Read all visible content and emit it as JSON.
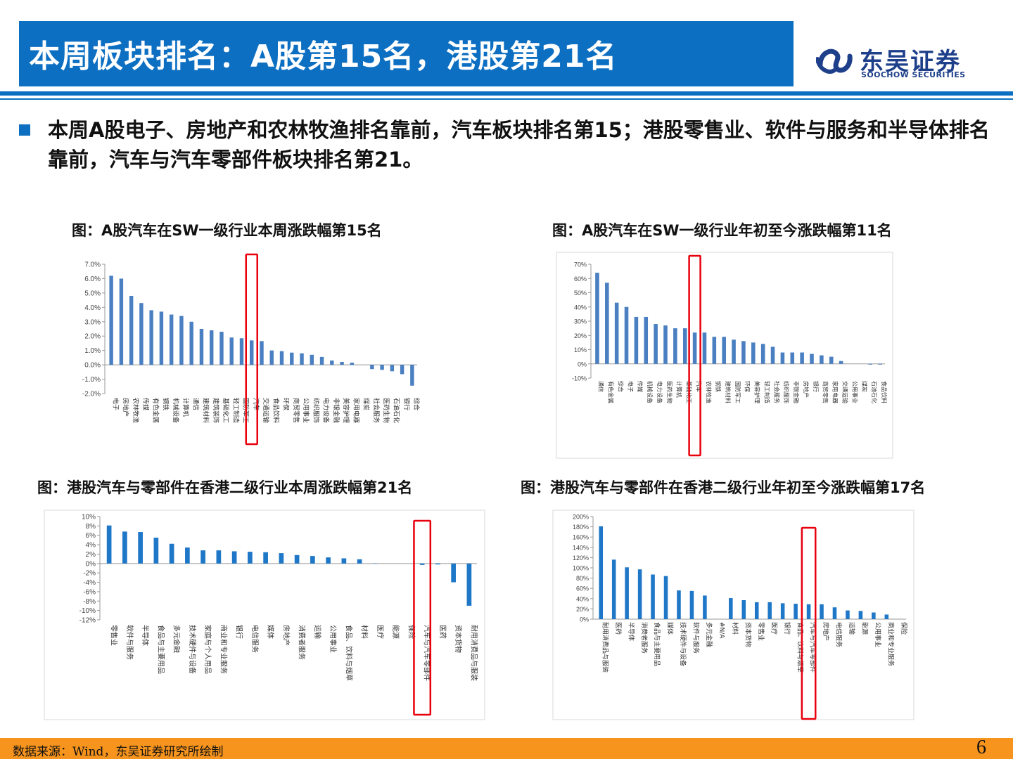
{
  "header": {
    "title": "本周板块排名：A股第15名，港股第21名",
    "logo_cn": "东吴证券",
    "logo_en": "SOOCHOW SECURITIES"
  },
  "summary": {
    "text": "本周A股电子、房地产和农林牧渔排名靠前，汽车板块排名第15；港股零售业、软件与服务和半导体排名靠前，汽车与汽车零部件板块排名第21。"
  },
  "footer": {
    "source": "数据来源：Wind，东吴证券研究所绘制",
    "page": "6"
  },
  "colors": {
    "brand_blue": "#0d6fc2",
    "bar_blue": "#4a7fc1",
    "bar_blue_dark": "#1f77c8",
    "highlight_red": "#e8000d",
    "footer_orange": "#f7941d"
  },
  "chart_data": [
    {
      "id": "a_week",
      "type": "bar",
      "title": "图：A股汽车在SW一级行业本周涨跌幅第15名",
      "categories": [
        "电子",
        "房地产",
        "农林牧渔",
        "传媒",
        "有色金属",
        "钢铁",
        "机械设备",
        "计算机",
        "通信",
        "建筑材料",
        "建筑装饰",
        "基础化工",
        "轻工制造",
        "国防军工",
        "汽车",
        "交通运输",
        "食品饮料",
        "环保",
        "商贸零售",
        "公用事业",
        "纺织服饰",
        "电力设备",
        "非银金融",
        "美容护理",
        "家用电器",
        "煤炭",
        "社会服务",
        "医药生物",
        "石油石化",
        "银行",
        "综合"
      ],
      "values": [
        6.2,
        6.0,
        4.8,
        4.3,
        3.8,
        3.7,
        3.5,
        3.4,
        3.0,
        2.5,
        2.4,
        2.3,
        1.9,
        1.85,
        1.7,
        1.65,
        1.0,
        0.95,
        0.85,
        0.8,
        0.7,
        0.55,
        0.3,
        0.2,
        0.15,
        0.0,
        -0.3,
        -0.35,
        -0.45,
        -0.65,
        -1.45
      ],
      "ylim": [
        -2,
        7
      ],
      "yticks": [
        "7.0%",
        "6.0%",
        "5.0%",
        "4.0%",
        "3.0%",
        "2.0%",
        "1.0%",
        "0.0%",
        "-1.0%",
        "-2.0%"
      ],
      "highlight": "汽车",
      "grid": false
    },
    {
      "id": "a_ytd",
      "type": "bar",
      "title": "图：A股汽车在SW一级行业年初至今涨跌幅第11名",
      "categories": [
        "通信",
        "有色金属",
        "综合",
        "电子",
        "传媒",
        "机械设备",
        "电力设备",
        "医药生物",
        "计算机",
        "基础化工",
        "汽车",
        "农林牧渔",
        "钢铁",
        "建筑材料",
        "国防军工",
        "环保",
        "美容护理",
        "轻工制造",
        "社会服务",
        "纺织服饰",
        "非银金融",
        "房地产",
        "银行",
        "商贸零售",
        "家用电器",
        "交通运输",
        "公用事业",
        "煤炭",
        "石油石化",
        "食品饮料"
      ],
      "values": [
        64,
        57,
        43,
        40,
        33,
        33,
        28,
        27,
        25,
        25,
        22,
        22,
        19,
        19,
        17,
        16,
        15,
        14,
        12,
        8,
        8,
        8,
        7,
        6,
        5,
        2,
        0,
        0,
        -0.5,
        -0.5
      ],
      "ylim": [
        -10,
        70
      ],
      "yticks": [
        "70%",
        "60%",
        "50%",
        "40%",
        "30%",
        "20%",
        "10%",
        "0%",
        "-10%"
      ],
      "highlight": "汽车",
      "grid": false
    },
    {
      "id": "hk_week",
      "type": "bar",
      "title": "图：港股汽车与零部件在香港二级行业本周涨跌幅第21名",
      "categories": [
        "零售业",
        "软件与服务",
        "半导体",
        "食品与主要用品",
        "多元金融",
        "技术硬件与设备",
        "家庭与个人用品",
        "商业和专业服务",
        "银行",
        "电信服务",
        "媒体",
        "房地产",
        "消费者服务",
        "运输",
        "公用事业",
        "食品、饮料与烟草",
        "材料",
        "医疗",
        "能源",
        "保险",
        "汽车与汽车零部件",
        "医药",
        "资本货物",
        "耐用消费品与服装"
      ],
      "values": [
        8.1,
        6.8,
        6.7,
        5.5,
        4.2,
        3.4,
        2.8,
        2.8,
        2.6,
        2.5,
        2.4,
        2.2,
        1.8,
        1.6,
        1.3,
        1.1,
        0.9,
        0.05,
        0.0,
        0.0,
        -0.3,
        -0.2,
        -4.0,
        -9.0
      ],
      "ylim": [
        -12,
        10
      ],
      "yticks": [
        "10%",
        "8%",
        "6%",
        "4%",
        "2%",
        "0%",
        "-2%",
        "-4%",
        "-6%",
        "-8%",
        "-10%",
        "-12%"
      ],
      "highlight": "汽车与汽车零部件",
      "grid": false
    },
    {
      "id": "hk_ytd",
      "type": "bar",
      "title": "图：港股汽车与零部件在香港二级行业年初至今涨跌幅第17名",
      "categories": [
        "耐用消费品与服装",
        "医药",
        "半导体",
        "消费者服务",
        "食品与主要用品",
        "媒体",
        "技术硬件与设备",
        "软件与服务",
        "多元金融",
        "#N/A",
        "材料",
        "资本货物",
        "零售业",
        "医疗",
        "银行",
        "食品、饮料与烟草",
        "汽车与汽车零部件",
        "房地产",
        "电信服务",
        "运输",
        "能源",
        "公用事业",
        "商业和专业服务",
        "保险"
      ],
      "values": [
        181,
        116,
        101,
        97,
        87,
        84,
        56,
        55,
        46,
        0,
        41,
        37,
        33,
        33,
        31,
        30,
        29,
        29,
        23,
        17,
        16,
        13,
        9,
        0
      ],
      "ylim": [
        0,
        200
      ],
      "yticks": [
        "200%",
        "180%",
        "160%",
        "140%",
        "120%",
        "100%",
        "80%",
        "60%",
        "40%",
        "20%",
        "0%"
      ],
      "highlight": "汽车与汽车零部件",
      "grid": false
    }
  ]
}
